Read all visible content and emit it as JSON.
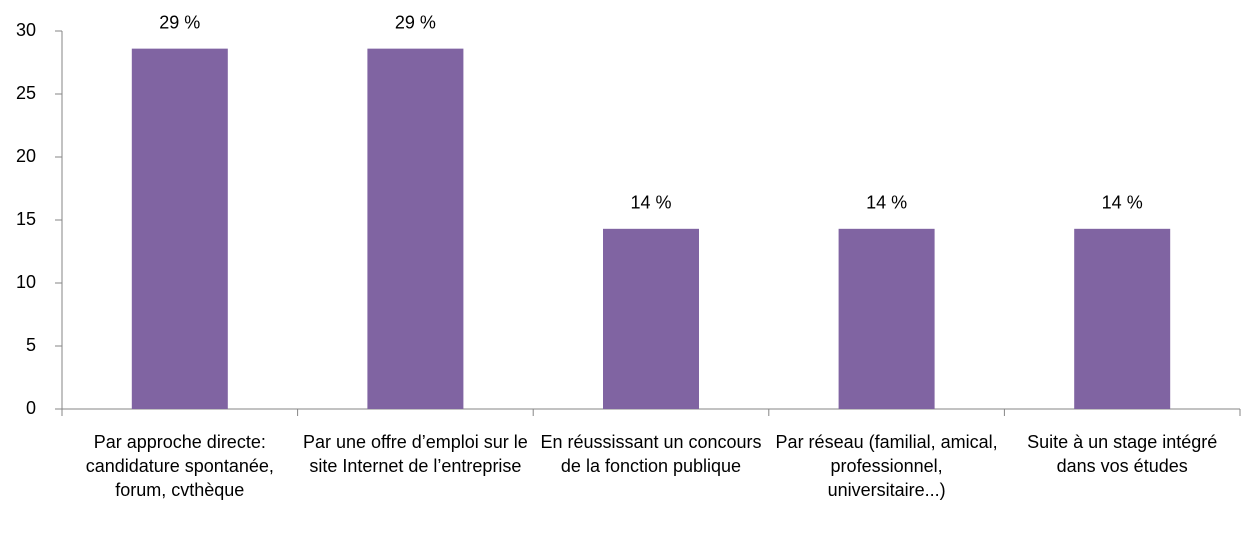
{
  "chart_data": {
    "type": "bar",
    "categories": [
      "Par approche directe: candidature spontanée, forum, cvthèque",
      "Par une offre d’emploi sur le site Internet de l’entreprise",
      "En réussissant un concours de la fonction publique",
      "Par réseau (familial, amical, professionnel, universitaire...)",
      "Suite à un stage intégré dans vos études"
    ],
    "values": [
      28.6,
      28.6,
      14.3,
      14.3,
      14.3
    ],
    "value_labels": [
      "29 %",
      "29 %",
      "14 %",
      "14 %",
      "14 %"
    ],
    "color": "#8064a2",
    "ylim": [
      0,
      30
    ],
    "yticks": [
      0,
      5,
      10,
      15,
      20,
      25,
      30
    ],
    "grid": false
  }
}
